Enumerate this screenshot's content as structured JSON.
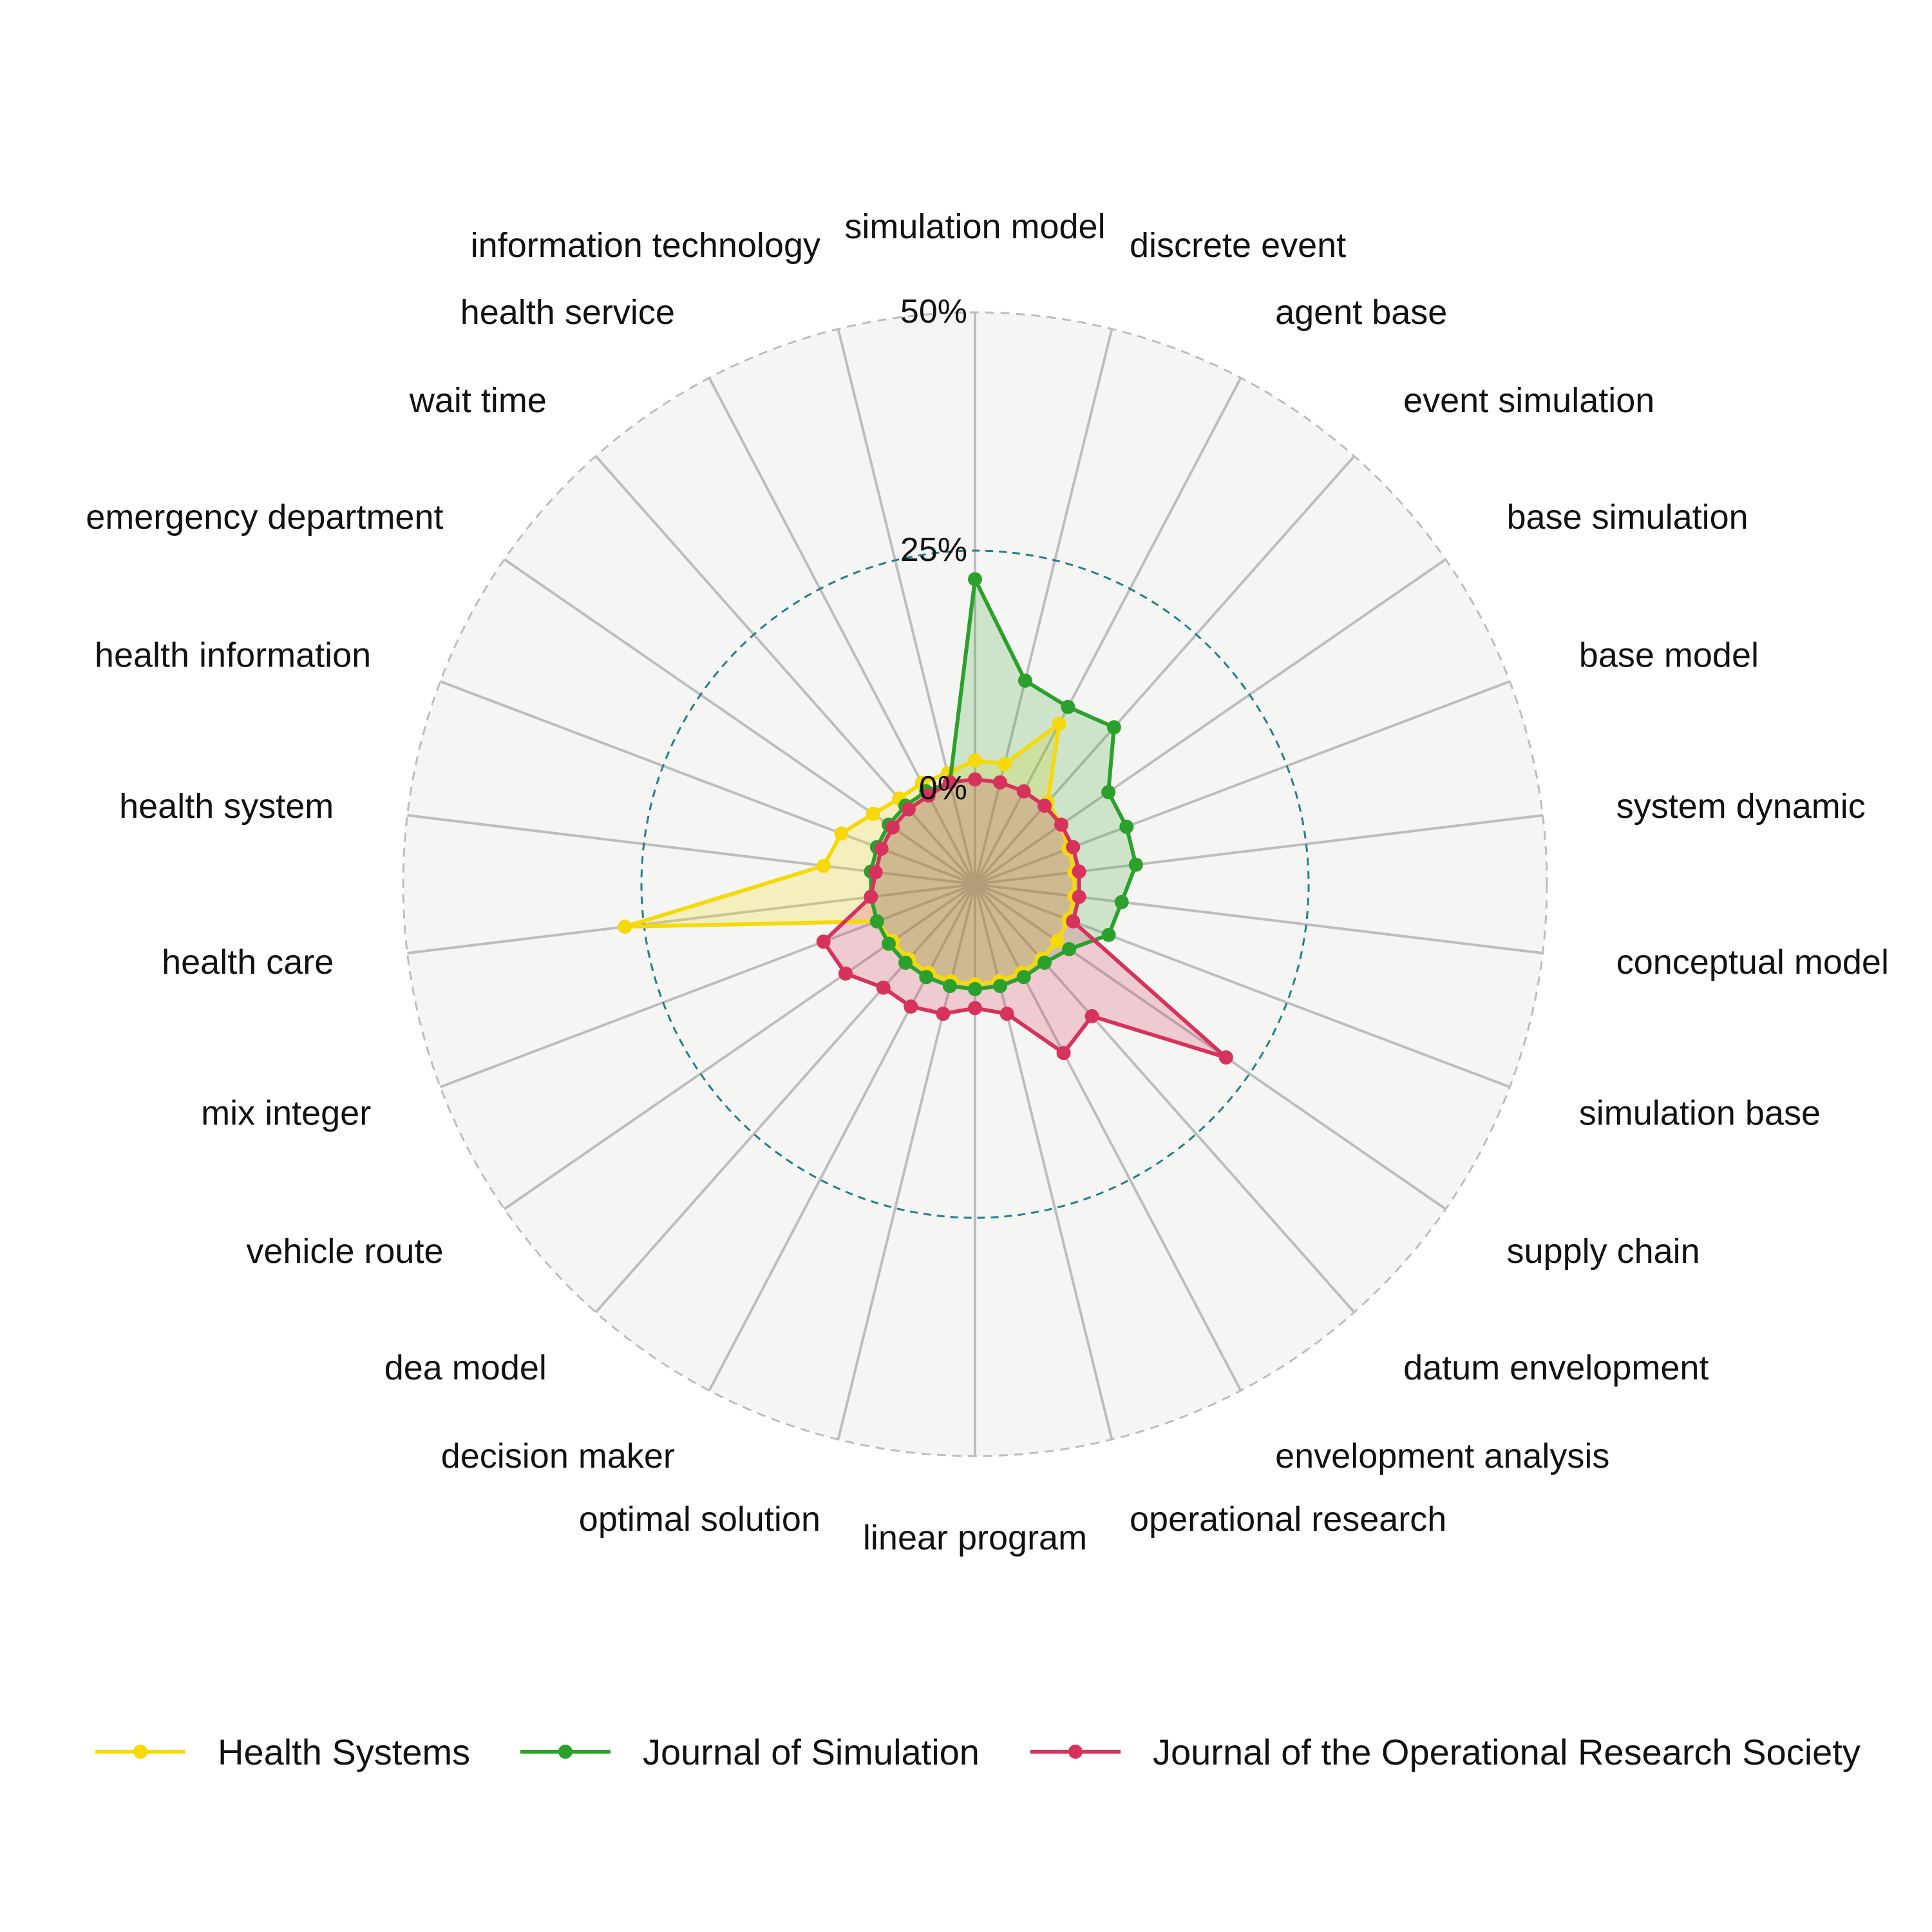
{
  "chart_data": {
    "type": "radar",
    "categories": [
      "simulation model",
      "discrete event",
      "agent base",
      "event simulation",
      "base simulation",
      "base model",
      "system dynamic",
      "conceptual model",
      "simulation base",
      "supply chain",
      "datum envelopment",
      "envelopment analysis",
      "operational research",
      "linear program",
      "optimal solution",
      "decision maker",
      "dea model",
      "vehicle route",
      "mix integer",
      "health care",
      "health system",
      "health information",
      "emergency department",
      "wait time",
      "health service",
      "information technology"
    ],
    "ticks": [
      {
        "value": 0,
        "label": "0%"
      },
      {
        "value": 25,
        "label": "25%"
      },
      {
        "value": 50,
        "label": "50%"
      }
    ],
    "rmin": -10,
    "rmax": 50,
    "series": [
      {
        "name": "Health Systems",
        "color": "#f5d90a",
        "fill": "rgba(245,217,10,0.22)",
        "values": [
          3,
          3,
          9,
          1.5,
          1,
          0.5,
          0.5,
          0.5,
          0.5,
          0.5,
          0.5,
          0.5,
          0.5,
          0.5,
          0.5,
          0.5,
          0.5,
          0.5,
          1,
          27,
          6,
          5,
          3,
          2,
          2,
          2
        ]
      },
      {
        "name": "Journal of Simulation",
        "color": "#2ca02c",
        "fill": "rgba(44,160,44,0.20)",
        "values": [
          22,
          12,
          11,
          12,
          7,
          7,
          7,
          5.5,
          5,
          2,
          1,
          1,
          1,
          1,
          1,
          1,
          1,
          1,
          1,
          1,
          1,
          1,
          1,
          1,
          1,
          1
        ]
      },
      {
        "name": "Journal of the Operational Research Society",
        "color": "#d6335c",
        "fill": "rgba(214,51,92,0.22)",
        "values": [
          1,
          1,
          1,
          1,
          1,
          1,
          1,
          1,
          1,
          22,
          8.5,
          10,
          4,
          3,
          4,
          4.5,
          4.5,
          6.5,
          7,
          1,
          0.5,
          0.5,
          0.5,
          0.5,
          0.5,
          1
        ]
      }
    ],
    "legend_position": "bottom"
  }
}
